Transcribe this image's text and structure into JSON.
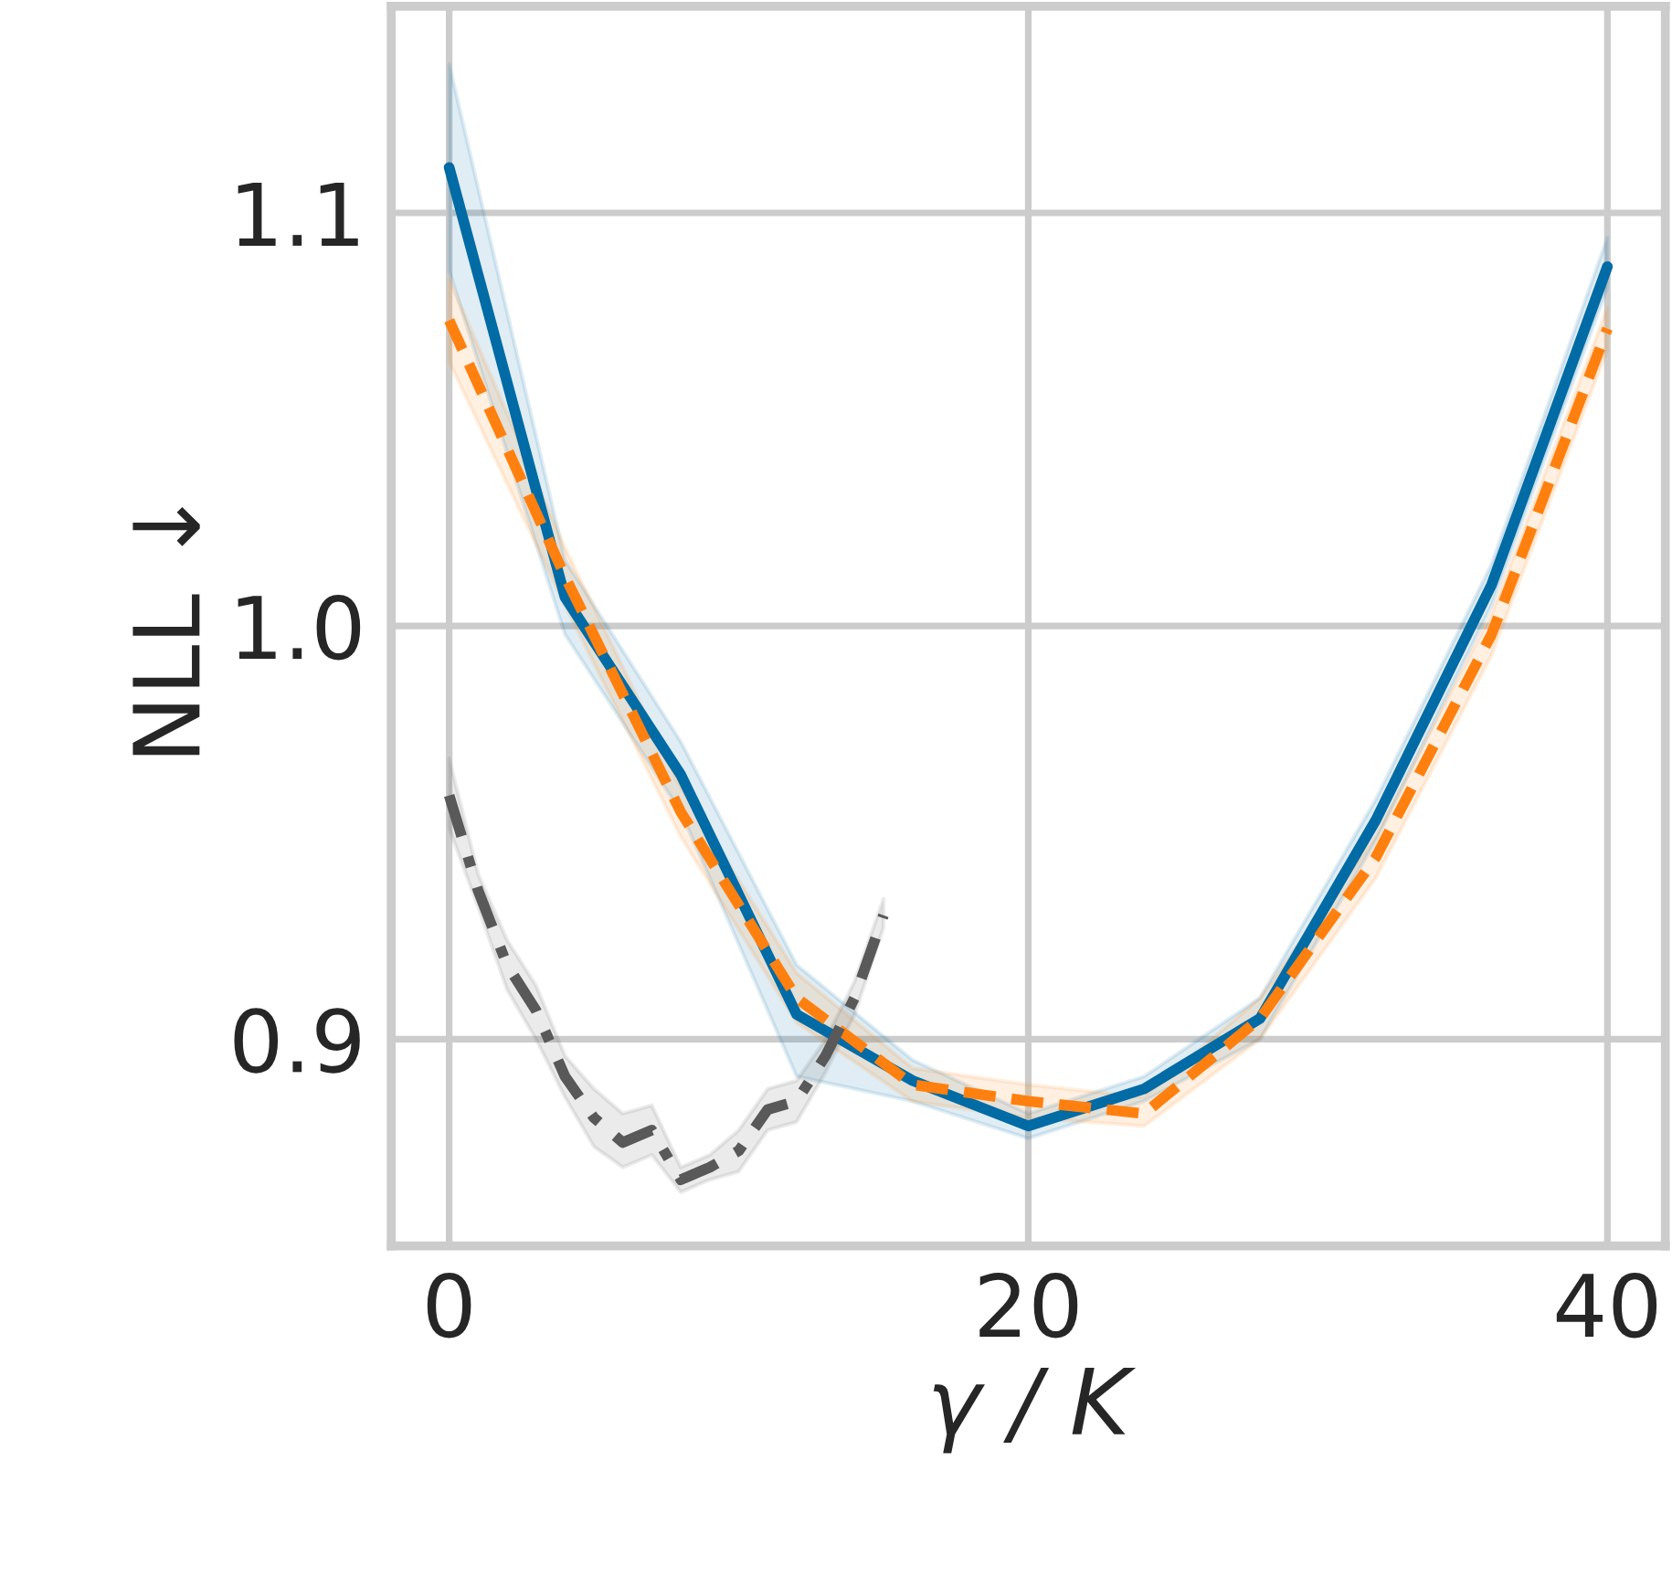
{
  "chart_data": {
    "type": "line",
    "xlabel": "γ / K",
    "ylabel": "NLL ↓",
    "xlim": [
      -2,
      42
    ],
    "ylim": [
      0.85,
      1.15
    ],
    "xticks": [
      0,
      20,
      40
    ],
    "yticks": [
      0.9,
      {
        "value": 1,
        "label": "1.0"
      },
      1.1
    ],
    "grid": true,
    "legend": false,
    "marker": "none",
    "series": [
      {
        "color": "#006ba4",
        "line_style": "solid",
        "x": [
          0,
          4,
          8,
          12,
          16,
          20,
          24,
          28,
          32,
          36,
          40
        ],
        "values": [
          1.111,
          1.007,
          0.964,
          0.906,
          0.89,
          0.879,
          0.888,
          0.905,
          0.953,
          1.01,
          1.087
        ],
        "lower": [
          1.086,
          0.998,
          0.955,
          0.891,
          0.885,
          0.876,
          0.885,
          0.9,
          0.948,
          1.005,
          1.082
        ],
        "upper": [
          1.136,
          1.016,
          0.972,
          0.918,
          0.895,
          0.882,
          0.891,
          0.91,
          0.958,
          1.015,
          1.094
        ]
      },
      {
        "color": "#ff800e",
        "line_style": "dashed",
        "x": [
          0,
          4,
          8,
          12,
          16,
          20,
          24,
          28,
          32,
          36,
          40
        ],
        "values": [
          1.074,
          1.012,
          0.955,
          0.91,
          0.889,
          0.885,
          0.882,
          0.905,
          0.944,
          0.998,
          1.072
        ],
        "lower": [
          1.064,
          1.005,
          0.949,
          0.904,
          0.885,
          0.881,
          0.879,
          0.9,
          0.939,
          0.993,
          1.067
        ],
        "upper": [
          1.084,
          1.019,
          0.961,
          0.916,
          0.893,
          0.889,
          0.886,
          0.91,
          0.949,
          1.003,
          1.077
        ]
      },
      {
        "color": "#595959",
        "line_style": "dashdot",
        "x": [
          0,
          1,
          2,
          3,
          4,
          5,
          6,
          7,
          8,
          9,
          10,
          11,
          12,
          13,
          14,
          15
        ],
        "values": [
          0.959,
          0.936,
          0.918,
          0.907,
          0.891,
          0.881,
          0.875,
          0.878,
          0.866,
          0.869,
          0.873,
          0.883,
          0.885,
          0.896,
          0.91,
          0.93
        ],
        "lower": [
          0.951,
          0.932,
          0.912,
          0.9,
          0.886,
          0.874,
          0.869,
          0.872,
          0.863,
          0.866,
          0.868,
          0.878,
          0.88,
          0.892,
          0.906,
          0.927
        ],
        "upper": [
          0.968,
          0.94,
          0.924,
          0.913,
          0.896,
          0.888,
          0.882,
          0.884,
          0.869,
          0.872,
          0.878,
          0.888,
          0.89,
          0.9,
          0.914,
          0.934
        ]
      }
    ]
  }
}
